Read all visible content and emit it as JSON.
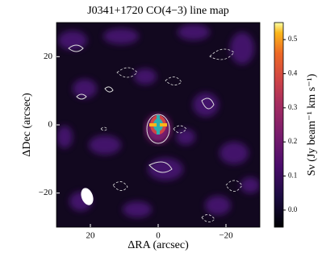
{
  "chart_data": {
    "type": "heatmap",
    "title": "J0341+1720 CO(4−3) line map",
    "x_label": "ΔRA (arcsec)",
    "y_label": "ΔDec (arcsec)",
    "colorbar_label": "Sν (Jy beam⁻¹ km s⁻¹)",
    "xlim": [
      30,
      -30
    ],
    "xticks": [
      20,
      0,
      {
        "value": -20,
        "label": "−20"
      }
    ],
    "ylim": [
      -30,
      30
    ],
    "yticks": [
      {
        "value": -20,
        "label": "−20"
      },
      0,
      20
    ],
    "clim": [
      -0.05,
      0.55
    ],
    "cticks": [
      {
        "value": 0,
        "label": "0.0"
      },
      0.1,
      0.2,
      0.3,
      0.4,
      0.5
    ]
  }
}
